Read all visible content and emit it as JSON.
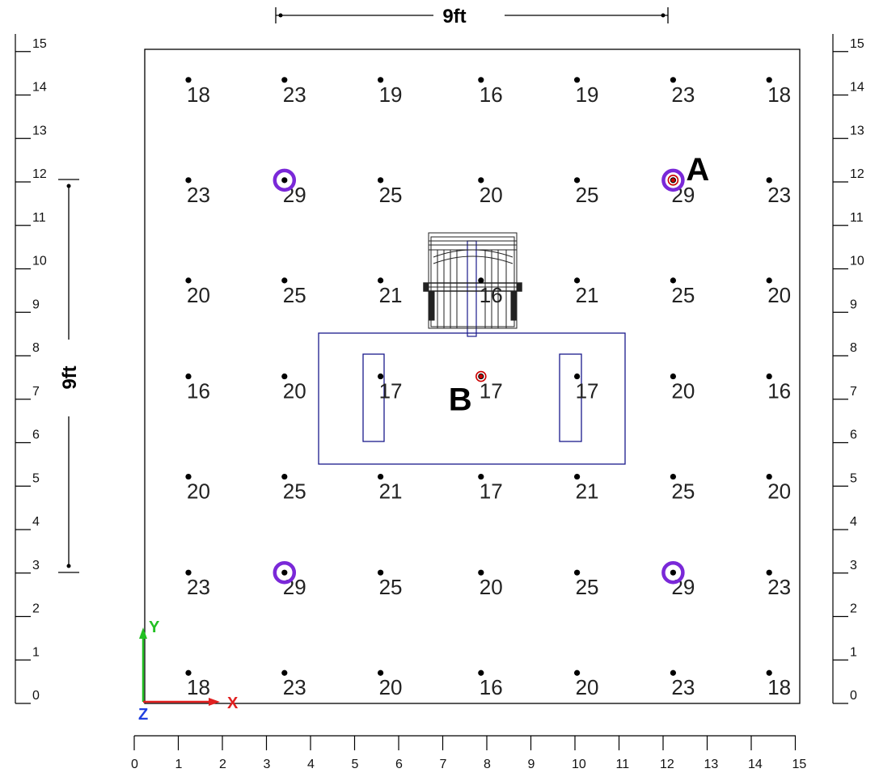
{
  "dimensions": {
    "horizontal_label": "9ft",
    "vertical_label": "9ft"
  },
  "colors": {
    "grid_point": "#000000",
    "fixture_outline": "#1a1a8c",
    "highlight_ring": "#7a28d8",
    "marker_red": "#cc0000",
    "axis_x": "#e02020",
    "axis_y": "#22c022",
    "axis_z": "#2040e0"
  },
  "axes_indicator": {
    "x_label": "X",
    "y_label": "Y",
    "z_label": "Z"
  },
  "scale": {
    "ticks": [
      0,
      1,
      2,
      3,
      4,
      5,
      6,
      7,
      8,
      9,
      10,
      11,
      12,
      13,
      14,
      15
    ]
  },
  "grid": {
    "x": [
      1,
      3.2,
      5.4,
      7.7,
      9.9,
      12.1,
      14.3
    ],
    "y": [
      14.3,
      12,
      9.7,
      7.5,
      5.2,
      3,
      0.7
    ],
    "values": [
      [
        18,
        23,
        19,
        16,
        19,
        23,
        18
      ],
      [
        23,
        29,
        25,
        20,
        25,
        29,
        23
      ],
      [
        20,
        25,
        21,
        16,
        21,
        25,
        20
      ],
      [
        16,
        20,
        17,
        17,
        17,
        20,
        16
      ],
      [
        20,
        25,
        21,
        17,
        21,
        25,
        20
      ],
      [
        23,
        29,
        25,
        20,
        25,
        29,
        23
      ],
      [
        18,
        23,
        20,
        16,
        20,
        23,
        18
      ]
    ]
  },
  "highlights": [
    {
      "x": 3.2,
      "y": 12
    },
    {
      "x": 12.1,
      "y": 12
    },
    {
      "x": 3.2,
      "y": 3
    },
    {
      "x": 12.1,
      "y": 3
    }
  ],
  "points": [
    {
      "label": "A",
      "x": 12.1,
      "y": 12
    },
    {
      "label": "B",
      "x": 7.7,
      "y": 7.5
    }
  ]
}
